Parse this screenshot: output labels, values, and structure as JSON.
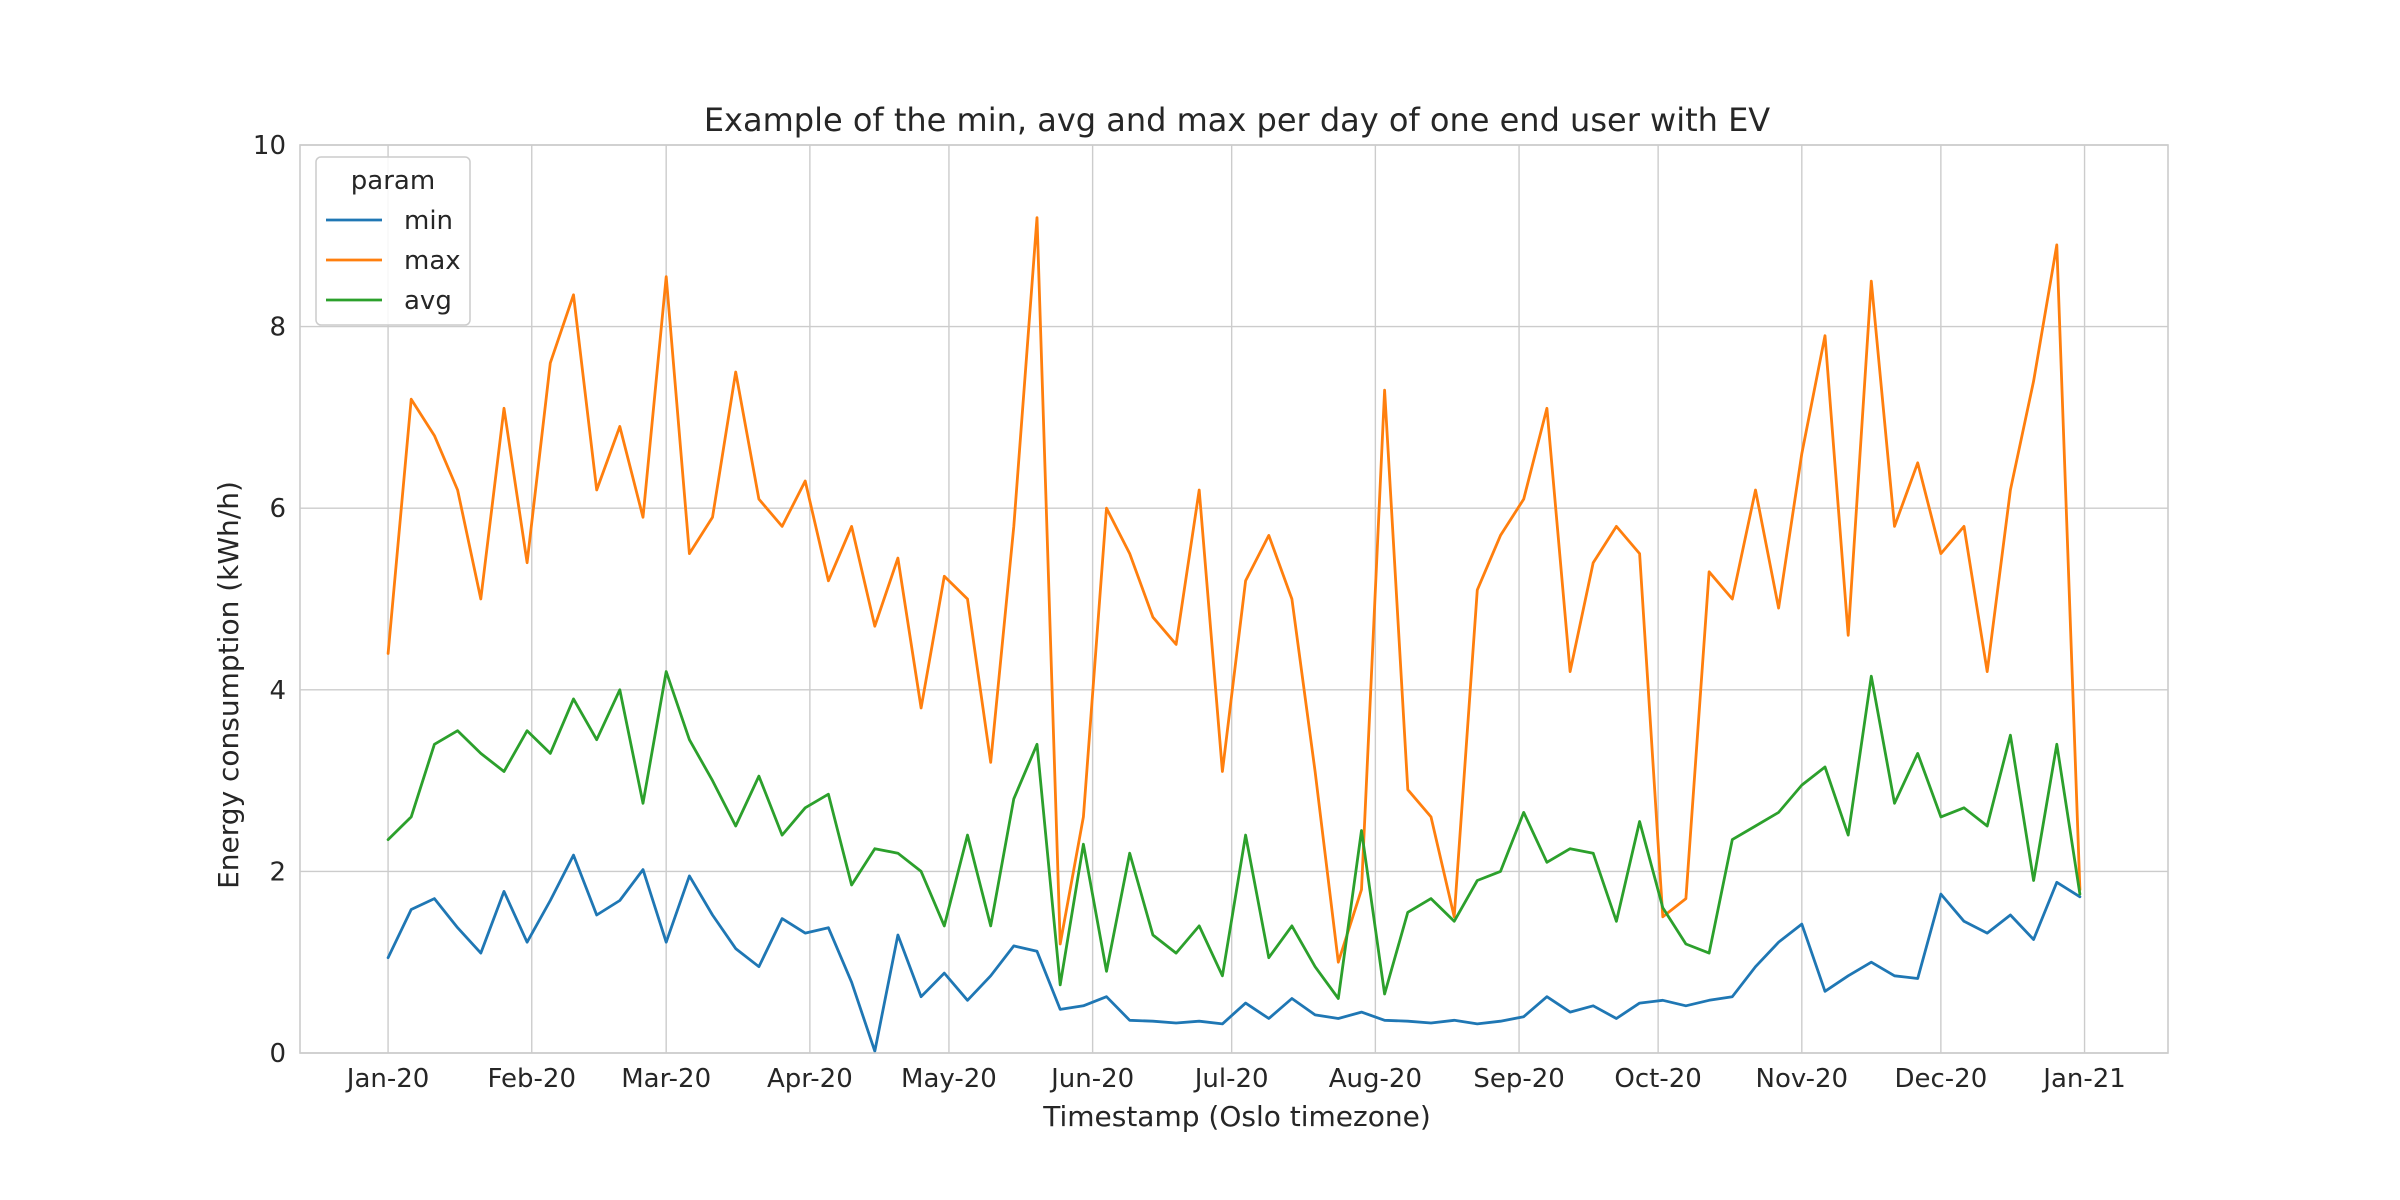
{
  "chart_data": {
    "type": "line",
    "title": "Example of the min, avg and max per day of one end user with EV",
    "xlabel": "Timestamp (Oslo timezone)",
    "ylabel": "Energy consumption (kWh/h)",
    "x_ticks": [
      "Jan-20",
      "Feb-20",
      "Mar-20",
      "Apr-20",
      "May-20",
      "Jun-20",
      "Jul-20",
      "Aug-20",
      "Sep-20",
      "Oct-20",
      "Nov-20",
      "Dec-20",
      "Jan-21"
    ],
    "x_tick_dates": [
      "2020-01-01",
      "2020-02-01",
      "2020-03-01",
      "2020-04-01",
      "2020-05-01",
      "2020-06-01",
      "2020-07-01",
      "2020-08-01",
      "2020-09-01",
      "2020-10-01",
      "2020-11-01",
      "2020-12-01",
      "2021-01-01"
    ],
    "x_range": [
      "2019-12-13",
      "2021-01-19"
    ],
    "y_ticks": [
      0,
      2,
      4,
      6,
      8,
      10
    ],
    "ylim": [
      0,
      10
    ],
    "grid": true,
    "legend": {
      "title": "param",
      "placement": "top-left"
    },
    "series_sampling": "approximately one point every 5 days, read from the daily series",
    "x": [
      "2020-01-01",
      "2020-01-06",
      "2020-01-11",
      "2020-01-16",
      "2020-01-21",
      "2020-01-26",
      "2020-01-31",
      "2020-02-05",
      "2020-02-10",
      "2020-02-15",
      "2020-02-20",
      "2020-02-25",
      "2020-03-01",
      "2020-03-06",
      "2020-03-11",
      "2020-03-16",
      "2020-03-21",
      "2020-03-26",
      "2020-03-31",
      "2020-04-05",
      "2020-04-10",
      "2020-04-15",
      "2020-04-20",
      "2020-04-25",
      "2020-04-30",
      "2020-05-05",
      "2020-05-10",
      "2020-05-15",
      "2020-05-20",
      "2020-05-25",
      "2020-05-30",
      "2020-06-04",
      "2020-06-09",
      "2020-06-14",
      "2020-06-19",
      "2020-06-24",
      "2020-06-29",
      "2020-07-04",
      "2020-07-09",
      "2020-07-14",
      "2020-07-19",
      "2020-07-24",
      "2020-07-29",
      "2020-08-03",
      "2020-08-08",
      "2020-08-13",
      "2020-08-18",
      "2020-08-23",
      "2020-08-28",
      "2020-09-02",
      "2020-09-07",
      "2020-09-12",
      "2020-09-17",
      "2020-09-22",
      "2020-09-27",
      "2020-10-02",
      "2020-10-07",
      "2020-10-12",
      "2020-10-17",
      "2020-10-22",
      "2020-10-27",
      "2020-11-01",
      "2020-11-06",
      "2020-11-11",
      "2020-11-16",
      "2020-11-21",
      "2020-11-26",
      "2020-12-01",
      "2020-12-06",
      "2020-12-11",
      "2020-12-16",
      "2020-12-21",
      "2020-12-26",
      "2020-12-31"
    ],
    "series": [
      {
        "name": "min",
        "color": "#1f77b4",
        "values": [
          1.05,
          1.58,
          1.7,
          1.38,
          1.1,
          1.78,
          1.22,
          1.68,
          2.18,
          1.52,
          1.68,
          2.02,
          1.22,
          1.95,
          1.52,
          1.15,
          0.95,
          1.48,
          1.32,
          1.38,
          0.78,
          0.02,
          1.3,
          0.62,
          0.88,
          0.58,
          0.85,
          1.18,
          1.12,
          0.48,
          0.52,
          0.62,
          0.36,
          0.35,
          0.33,
          0.35,
          0.32,
          0.55,
          0.38,
          0.6,
          0.42,
          0.38,
          0.45,
          0.36,
          0.35,
          0.33,
          0.36,
          0.32,
          0.35,
          0.4,
          0.62,
          0.45,
          0.52,
          0.38,
          0.55,
          0.58,
          0.52,
          0.58,
          0.62,
          0.95,
          1.22,
          1.42,
          0.68,
          0.85,
          1.0,
          0.85,
          0.82,
          1.75,
          1.45,
          1.32,
          1.52,
          1.25,
          1.88,
          1.72
        ]
      },
      {
        "name": "max",
        "color": "#ff7f0e",
        "values": [
          4.4,
          7.2,
          6.8,
          6.2,
          5.0,
          7.1,
          5.4,
          7.6,
          8.35,
          6.2,
          6.9,
          5.9,
          8.55,
          5.5,
          5.9,
          7.5,
          6.1,
          5.8,
          6.3,
          5.2,
          5.8,
          4.7,
          5.45,
          3.8,
          5.25,
          5.0,
          3.2,
          5.8,
          9.2,
          1.2,
          2.6,
          6.0,
          5.5,
          4.8,
          4.5,
          6.2,
          3.1,
          5.2,
          5.7,
          5.0,
          3.1,
          1.0,
          1.8,
          7.3,
          2.9,
          2.6,
          1.5,
          5.1,
          5.7,
          6.1,
          7.1,
          4.2,
          5.4,
          5.8,
          5.5,
          1.5,
          1.7,
          5.3,
          5.0,
          6.2,
          4.9,
          6.6,
          7.9,
          4.6,
          8.5,
          5.8,
          6.5,
          5.5,
          5.8,
          4.2,
          6.2,
          7.4,
          8.9,
          1.8
        ]
      },
      {
        "name": "avg",
        "color": "#2ca02c",
        "values": [
          2.35,
          2.6,
          3.4,
          3.55,
          3.3,
          3.1,
          3.55,
          3.3,
          3.9,
          3.45,
          4.0,
          2.75,
          4.2,
          3.45,
          3.0,
          2.5,
          3.05,
          2.4,
          2.7,
          2.85,
          1.85,
          2.25,
          2.2,
          2.0,
          1.4,
          2.4,
          1.4,
          2.8,
          3.4,
          0.75,
          2.3,
          0.9,
          2.2,
          1.3,
          1.1,
          1.4,
          0.85,
          2.4,
          1.05,
          1.4,
          0.95,
          0.6,
          2.45,
          0.65,
          1.55,
          1.7,
          1.45,
          1.9,
          2.0,
          2.65,
          2.1,
          2.25,
          2.2,
          1.45,
          2.55,
          1.6,
          1.2,
          1.1,
          2.35,
          2.5,
          2.65,
          2.95,
          3.15,
          2.4,
          4.15,
          2.75,
          3.3,
          2.6,
          2.7,
          2.5,
          3.5,
          1.9,
          3.4,
          1.75
        ]
      }
    ]
  }
}
